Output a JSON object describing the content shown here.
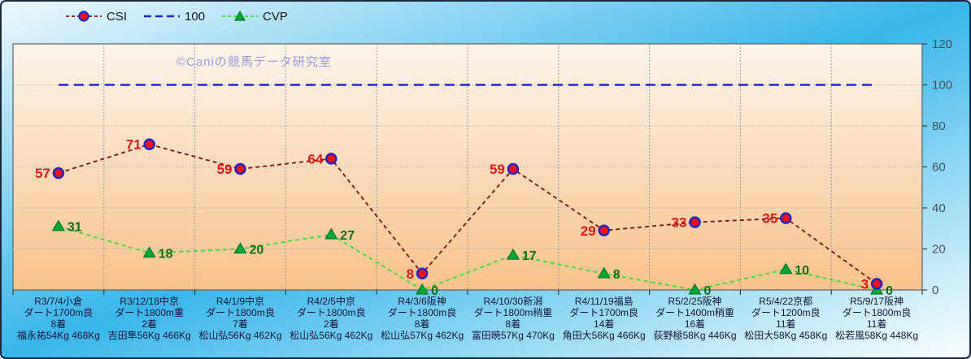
{
  "watermark": {
    "text": "©Caniの競馬データ研究室",
    "color": "#9a9ade"
  },
  "legend": {
    "items": [
      "CSI",
      "100",
      "CVP"
    ]
  },
  "axes": {
    "y_side": "right",
    "yticks": [
      0,
      20,
      40,
      60,
      80,
      100,
      120
    ],
    "ytick_color": "#47505c"
  },
  "colors": {
    "frame_border": "#1b2a3c",
    "background_gradient": [
      "#edf8fe",
      "#38b6ea",
      "#fbffff"
    ],
    "plot_gradient_top": "#fdf4ea",
    "plot_gradient_bottom": "#f8c28c",
    "plot_border": "#5f5f5f",
    "h_gridline": "#c3bbae",
    "v_gridline": "#9a9a9a",
    "xlabel_color": "#121538"
  },
  "chart_data": {
    "type": "line",
    "title": "",
    "xlabel": "",
    "ylabel": "",
    "ylim": [
      0,
      120
    ],
    "grid": true,
    "legend_position": "top",
    "categories": [
      [
        "R3/7/4小倉",
        "ダート1700m良",
        "8着",
        "福永祐54Kg 468Kg"
      ],
      [
        "R3/12/18中京",
        "ダート1800m重",
        "2着",
        "吉田隼56Kg 466Kg"
      ],
      [
        "R4/1/9中京",
        "ダート1800m良",
        "7着",
        "松山弘56Kg 462Kg"
      ],
      [
        "R4/2/5中京",
        "ダート1800m良",
        "2着",
        "松山弘56Kg 462Kg"
      ],
      [
        "R4/3/6阪神",
        "ダート1800m良",
        "8着",
        "松山弘57Kg 462Kg"
      ],
      [
        "R4/10/30新潟",
        "ダート1800m稍重",
        "8着",
        "富田暁57Kg 470Kg"
      ],
      [
        "R4/11/19福島",
        "ダート1700m良",
        "14着",
        "角田大56Kg 466Kg"
      ],
      [
        "R5/2/25阪神",
        "ダート1400m稍重",
        "16着",
        "荻野極58Kg 446Kg"
      ],
      [
        "R5/4/22京都",
        "ダート1200m良",
        "11着",
        "松田大58Kg 458Kg"
      ],
      [
        "R5/9/17阪神",
        "ダート1800m良",
        "11着",
        "松若風58Kg 448Kg"
      ]
    ],
    "series": [
      {
        "name": "100",
        "values": [
          100,
          100,
          100,
          100,
          100,
          100,
          100,
          100,
          100,
          100
        ],
        "line_color": "#2525cf",
        "line_width": 2.6,
        "dash": "12 7",
        "marker": "none",
        "show_labels": false
      },
      {
        "name": "CVP",
        "values": [
          31,
          18,
          20,
          27,
          0,
          17,
          8,
          0,
          10,
          0
        ],
        "line_color": "#35df35",
        "line_width": 1.8,
        "dash": "5 4",
        "marker": "triangle",
        "marker_fill": "#00a838",
        "marker_edge": "#0b7a26",
        "label_color": "#156b15",
        "label_side": "right",
        "show_labels": true
      },
      {
        "name": "CSI",
        "values": [
          57,
          71,
          59,
          64,
          8,
          59,
          29,
          33,
          35,
          3
        ],
        "line_color": "#7d0f0f",
        "line_width": 1.8,
        "dash": "5 4",
        "marker": "circle",
        "marker_fill": "#ee1111",
        "marker_edge": "#2323c8",
        "label_color": "#e81717",
        "label_side": "left",
        "show_labels": true
      }
    ]
  }
}
